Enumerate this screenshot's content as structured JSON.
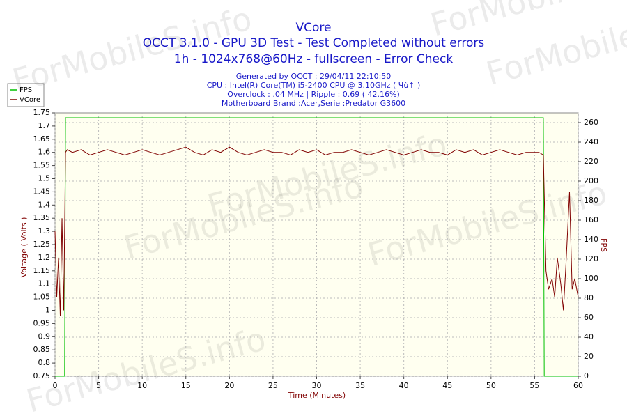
{
  "chart_data": {
    "type": "line",
    "title": "VCore",
    "subtitle": [
      "OCCT 3.1.0 - GPU 3D Test - Test Completed without errors",
      "1h - 1024x768@60Hz - fullscreen - Error Check"
    ],
    "info": [
      "Generated by OCCT : 29/04/11 22:10:50",
      "CPU : Intel(R) Core(TM) i5-2400 CPU @ 3.10GHz ( Чù↑ )",
      "Overclock : .04 MHz | Ripple : 0.69 ( 42.16%)",
      "Motherboard Brand :Acer,Serie :Predator G3600"
    ],
    "watermark": "ForMobileS.info",
    "xlabel": "Time (Minutes)",
    "ylabel": "Voltage ( Volts )",
    "y2label": "FPS",
    "xlim": [
      0,
      60
    ],
    "xticks": [
      0,
      5,
      10,
      15,
      20,
      25,
      30,
      35,
      40,
      45,
      50,
      55,
      60
    ],
    "ylim": [
      0.75,
      1.75
    ],
    "yticks": [
      0.75,
      0.8,
      0.85,
      0.9,
      0.95,
      1,
      1.05,
      1.1,
      1.15,
      1.2,
      1.25,
      1.3,
      1.35,
      1.4,
      1.45,
      1.5,
      1.55,
      1.6,
      1.65,
      1.7,
      1.75
    ],
    "y2lim": [
      0,
      270
    ],
    "y2ticks": [
      0,
      20,
      40,
      60,
      80,
      100,
      120,
      140,
      160,
      180,
      200,
      220,
      240,
      260
    ],
    "grid": true,
    "legend": "top-left",
    "series": [
      {
        "name": "FPS",
        "color": "#00c000",
        "axis": "y2",
        "x": [
          0,
          1.1,
          1.2,
          56,
          56.1,
          60
        ],
        "values": [
          0,
          0,
          265,
          265,
          0,
          0
        ]
      },
      {
        "name": "VCore",
        "color": "#800000",
        "axis": "y",
        "x": [
          0,
          0.2,
          0.4,
          0.6,
          0.8,
          1.0,
          1.2,
          1.4,
          2,
          3,
          4,
          5,
          6,
          7,
          8,
          9,
          10,
          11,
          12,
          13,
          14,
          15,
          16,
          17,
          18,
          19,
          20,
          21,
          22,
          23,
          24,
          25,
          26,
          27,
          28,
          29,
          30,
          31,
          32,
          33,
          34,
          35,
          36,
          37,
          38,
          39,
          40,
          41,
          42,
          43,
          44,
          45,
          46,
          47,
          48,
          49,
          50,
          51,
          52,
          53,
          54,
          55,
          55.5,
          56,
          56.3,
          56.6,
          57,
          57.3,
          57.6,
          58,
          58.3,
          58.6,
          59,
          59.3,
          59.6,
          60
        ],
        "values": [
          1.3,
          1.05,
          1.2,
          0.98,
          1.35,
          1.0,
          1.6,
          1.61,
          1.6,
          1.61,
          1.59,
          1.6,
          1.61,
          1.6,
          1.59,
          1.6,
          1.61,
          1.6,
          1.59,
          1.6,
          1.61,
          1.62,
          1.6,
          1.59,
          1.61,
          1.6,
          1.62,
          1.6,
          1.59,
          1.6,
          1.61,
          1.6,
          1.6,
          1.59,
          1.61,
          1.6,
          1.61,
          1.59,
          1.6,
          1.6,
          1.61,
          1.6,
          1.59,
          1.6,
          1.61,
          1.6,
          1.59,
          1.6,
          1.61,
          1.6,
          1.6,
          1.59,
          1.61,
          1.6,
          1.61,
          1.59,
          1.6,
          1.61,
          1.6,
          1.59,
          1.6,
          1.6,
          1.6,
          1.59,
          1.15,
          1.08,
          1.12,
          1.05,
          1.2,
          1.1,
          1.0,
          1.18,
          1.45,
          1.08,
          1.12,
          1.05
        ]
      }
    ]
  }
}
